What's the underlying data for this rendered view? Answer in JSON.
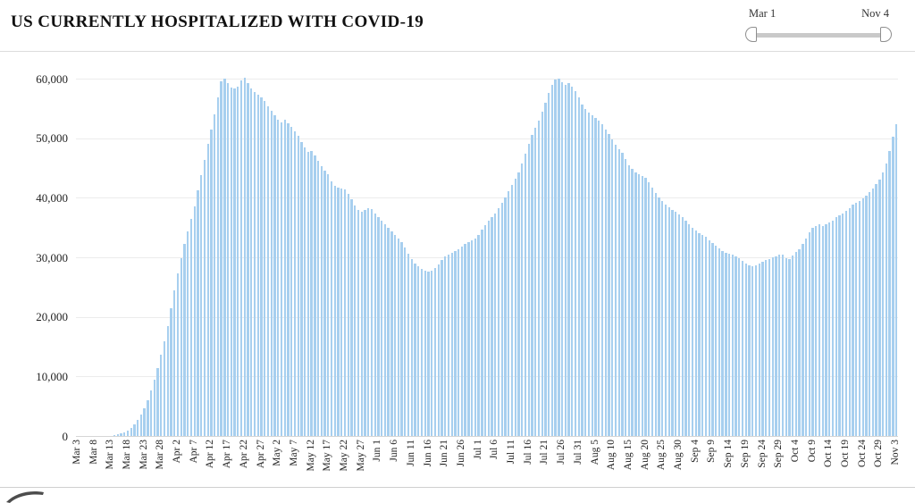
{
  "header": {
    "title": "US CURRENTLY HOSPITALIZED WITH COVID-19",
    "slider": {
      "start_label": "Mar 1",
      "end_label": "Nov 4"
    }
  },
  "chart_data": {
    "type": "bar",
    "title": "US CURRENTLY HOSPITALIZED WITH COVID-19",
    "xlabel": "",
    "ylabel": "",
    "x_range": [
      "Mar 3",
      "Nov 3"
    ],
    "ylim": [
      0,
      60000
    ],
    "grid": "horizontal",
    "legend": "none",
    "bar_color": "#a7cfef",
    "y_ticks": [
      "0",
      "10,000",
      "20,000",
      "30,000",
      "40,000",
      "50,000",
      "60,000"
    ],
    "y_tick_values": [
      0,
      10000,
      20000,
      30000,
      40000,
      50000,
      60000
    ],
    "x_tick_step_days": 5,
    "x_tick_labels": [
      "Mar 3",
      "Mar 8",
      "Mar 13",
      "Mar 18",
      "Mar 23",
      "Mar 28",
      "Apr 2",
      "Apr 7",
      "Apr 12",
      "Apr 17",
      "Apr 22",
      "Apr 27",
      "May 2",
      "May 7",
      "May 12",
      "May 17",
      "May 22",
      "May 27",
      "Jun 1",
      "Jun 6",
      "Jun 11",
      "Jun 16",
      "Jun 21",
      "Jun 26",
      "Jul 1",
      "Jul 6",
      "Jul 11",
      "Jul 16",
      "Jul 21",
      "Jul 26",
      "Jul 31",
      "Aug 5",
      "Aug 10",
      "Aug 15",
      "Aug 20",
      "Aug 25",
      "Aug 30",
      "Sep 4",
      "Sep 9",
      "Sep 14",
      "Sep 19",
      "Sep 24",
      "Sep 29",
      "Oct 4",
      "Oct 9",
      "Oct 14",
      "Oct 19",
      "Oct 24",
      "Oct 29",
      "Nov 3"
    ],
    "values": [
      0,
      0,
      0,
      0,
      0,
      0,
      0,
      0,
      0,
      0,
      0,
      150,
      250,
      400,
      600,
      900,
      1400,
      2000,
      2700,
      3600,
      4700,
      6000,
      7600,
      9400,
      11400,
      13600,
      15900,
      18500,
      21500,
      24500,
      27300,
      29800,
      32200,
      34300,
      36400,
      38600,
      41200,
      43800,
      46400,
      49000,
      51500,
      54000,
      56800,
      59500,
      60000,
      59200,
      58500,
      58300,
      58600,
      59700,
      60100,
      59300,
      58400,
      57800,
      57300,
      56800,
      56200,
      55400,
      54600,
      53800,
      53100,
      52600,
      53100,
      52500,
      51900,
      51200,
      50400,
      49300,
      48400,
      47700,
      47900,
      47100,
      46200,
      45300,
      44500,
      43900,
      42700,
      42000,
      41700,
      41500,
      41400,
      40700,
      39700,
      38700,
      38000,
      37700,
      38000,
      38300,
      38100,
      37400,
      36800,
      36200,
      35500,
      34900,
      34300,
      33800,
      33200,
      32500,
      31600,
      30600,
      29700,
      29000,
      28500,
      28100,
      27800,
      27600,
      27800,
      28200,
      28800,
      29500,
      30100,
      30500,
      30800,
      31100,
      31400,
      31800,
      32200,
      32500,
      32800,
      33200,
      33800,
      34600,
      35400,
      36100,
      36700,
      37400,
      38200,
      39100,
      40100,
      41100,
      42200,
      43200,
      44300,
      45800,
      47400,
      49000,
      50500,
      51800,
      53000,
      54400,
      56000,
      57600,
      58900,
      59800,
      60000,
      59400,
      59000,
      59200,
      58700,
      57900,
      56900,
      55600,
      54900,
      54300,
      53800,
      53400,
      53000,
      52300,
      51500,
      50700,
      49800,
      48900,
      48200,
      47500,
      46500,
      45500,
      44800,
      44300,
      44000,
      43700,
      43400,
      42600,
      41700,
      40800,
      40100,
      39500,
      38900,
      38400,
      38000,
      37600,
      37200,
      36700,
      36100,
      35600,
      35000,
      34500,
      34100,
      33800,
      33400,
      32900,
      32400,
      31900,
      31500,
      31100,
      30800,
      30600,
      30400,
      30100,
      29800,
      29400,
      29000,
      28700,
      28500,
      28600,
      28900,
      29200,
      29500,
      29700,
      30000,
      30200,
      30400,
      30500,
      29900,
      29700,
      30300,
      30900,
      31400,
      32200,
      33200,
      34200,
      34900,
      35300,
      35500,
      35200,
      35500,
      35900,
      36200,
      36800,
      37100,
      37400,
      37800,
      38300,
      38800,
      39200,
      39500,
      39900,
      40400,
      41000,
      41600,
      42300,
      43100,
      44300,
      45800,
      47900,
      50300,
      52400
    ]
  }
}
